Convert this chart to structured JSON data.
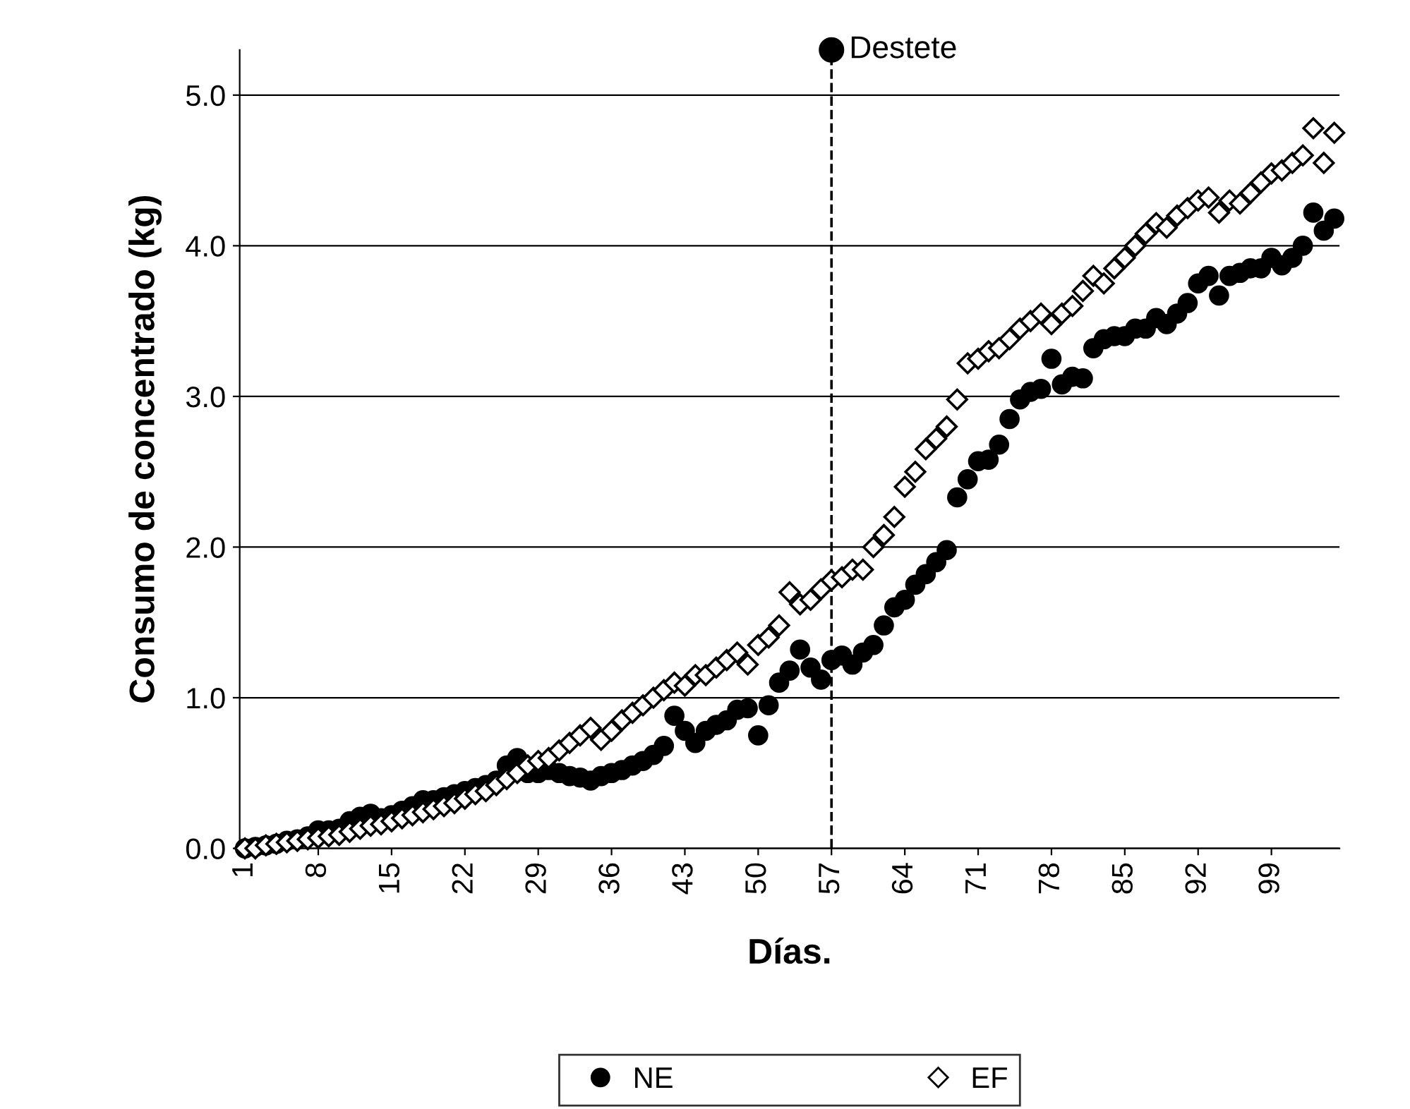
{
  "chart_data": {
    "type": "scatter",
    "xlabel": "Días.",
    "ylabel": "Consumo de concentrado (kg)",
    "x": [
      1,
      2,
      3,
      4,
      5,
      6,
      7,
      8,
      9,
      10,
      11,
      12,
      13,
      14,
      15,
      16,
      17,
      18,
      19,
      20,
      21,
      22,
      23,
      24,
      25,
      26,
      27,
      28,
      29,
      30,
      31,
      32,
      33,
      34,
      35,
      36,
      37,
      38,
      39,
      40,
      41,
      42,
      43,
      44,
      45,
      46,
      47,
      48,
      49,
      50,
      51,
      52,
      53,
      54,
      55,
      56,
      57,
      58,
      59,
      60,
      61,
      62,
      63,
      64,
      65,
      66,
      67,
      68,
      69,
      70,
      71,
      72,
      73,
      74,
      75,
      76,
      77,
      78,
      79,
      80,
      81,
      82,
      83,
      84,
      85,
      86,
      87,
      88,
      89,
      90,
      91,
      92,
      93,
      94,
      95,
      96,
      97,
      98,
      99,
      100,
      101,
      102,
      103,
      104,
      105
    ],
    "series": [
      {
        "name": "NE",
        "color": "#000000",
        "marker": "circle",
        "values": [
          0.0,
          0.01,
          0.02,
          0.03,
          0.05,
          0.06,
          0.08,
          0.12,
          0.12,
          0.13,
          0.18,
          0.21,
          0.23,
          0.2,
          0.22,
          0.25,
          0.28,
          0.32,
          0.32,
          0.34,
          0.36,
          0.38,
          0.4,
          0.42,
          0.45,
          0.55,
          0.6,
          0.5,
          0.5,
          0.52,
          0.5,
          0.48,
          0.47,
          0.45,
          0.48,
          0.5,
          0.52,
          0.55,
          0.58,
          0.62,
          0.68,
          0.88,
          0.78,
          0.7,
          0.78,
          0.82,
          0.85,
          0.92,
          0.93,
          0.75,
          0.95,
          1.1,
          1.18,
          1.32,
          1.2,
          1.12,
          1.25,
          1.28,
          1.22,
          1.3,
          1.35,
          1.48,
          1.6,
          1.65,
          1.75,
          1.82,
          1.9,
          1.98,
          2.33,
          2.45,
          2.57,
          2.58,
          2.68,
          2.85,
          2.98,
          3.03,
          3.05,
          3.25,
          3.08,
          3.13,
          3.12,
          3.32,
          3.38,
          3.4,
          3.4,
          3.45,
          3.45,
          3.52,
          3.48,
          3.55,
          3.62,
          3.75,
          3.8,
          3.67,
          3.8,
          3.82,
          3.85,
          3.85,
          3.92,
          3.87,
          3.92,
          4.0,
          4.22,
          4.1,
          4.18
        ]
      },
      {
        "name": "EF",
        "color": "#000000",
        "marker": "diamond",
        "values": [
          0.0,
          0.0,
          0.02,
          0.03,
          0.04,
          0.05,
          0.06,
          0.07,
          0.08,
          0.09,
          0.11,
          0.13,
          0.15,
          0.16,
          0.18,
          0.2,
          0.22,
          0.24,
          0.26,
          0.28,
          0.3,
          0.33,
          0.36,
          0.38,
          0.42,
          0.46,
          0.5,
          0.55,
          0.58,
          0.6,
          0.65,
          0.7,
          0.75,
          0.8,
          0.72,
          0.78,
          0.85,
          0.9,
          0.95,
          1.0,
          1.05,
          1.1,
          1.08,
          1.15,
          1.15,
          1.2,
          1.25,
          1.3,
          1.22,
          1.35,
          1.4,
          1.48,
          1.7,
          1.62,
          1.65,
          1.72,
          1.78,
          1.8,
          1.85,
          1.85,
          2.0,
          2.08,
          2.2,
          2.4,
          2.5,
          2.65,
          2.72,
          2.8,
          2.98,
          3.22,
          3.25,
          3.3,
          3.32,
          3.38,
          3.45,
          3.5,
          3.55,
          3.48,
          3.55,
          3.6,
          3.7,
          3.8,
          3.75,
          3.85,
          3.92,
          4.0,
          4.08,
          4.15,
          4.12,
          4.2,
          4.25,
          4.3,
          4.32,
          4.22,
          4.3,
          4.28,
          4.35,
          4.42,
          4.48,
          4.5,
          4.55,
          4.6,
          4.78,
          4.55,
          4.75
        ]
      }
    ],
    "xlim": [
      0.5,
      105.5
    ],
    "xticks": [
      1,
      8,
      15,
      22,
      29,
      36,
      43,
      50,
      57,
      64,
      71,
      78,
      85,
      92,
      99
    ],
    "ylim": [
      0,
      5.3
    ],
    "yticks": [
      {
        "value": 0,
        "label": "0.0"
      },
      {
        "value": 1,
        "label": "1.0"
      },
      {
        "value": 2,
        "label": "2.0"
      },
      {
        "value": 3,
        "label": "3.0"
      },
      {
        "value": 4,
        "label": "4.0"
      },
      {
        "value": 5,
        "label": "5.0"
      }
    ],
    "ref_lines": [
      {
        "axis": "x",
        "value": 57,
        "label": "Destete",
        "color": "#000000",
        "line_style": "dashed"
      }
    ],
    "grid": "y",
    "legend": "bottom"
  }
}
